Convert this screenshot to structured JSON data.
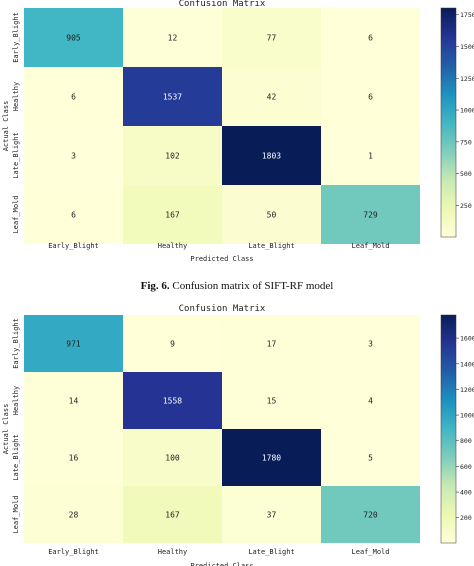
{
  "figures": [
    {
      "caption_bold": "Fig. 6.",
      "caption_text": "Confusion matrix of SIFT-RF model"
    },
    {
      "caption_bold": "",
      "caption_text": ""
    }
  ],
  "colors": {
    "colormap": [
      "#ffffd9",
      "#edf8b1",
      "#c7e9b4",
      "#7fcdbb",
      "#41b6c4",
      "#1d91c0",
      "#225ea8",
      "#253494",
      "#081d58"
    ]
  },
  "chart_data": [
    {
      "type": "heatmap",
      "title": "Confusion Matrix",
      "xlabel": "Predicted Class",
      "ylabel": "Actual Class",
      "x_categories": [
        "Early_Blight",
        "Healthy",
        "Late_Blight",
        "Leaf_Mold"
      ],
      "y_categories": [
        "Early_Blight",
        "Healthy",
        "Late_Blight",
        "Leaf_Mold"
      ],
      "values": [
        [
          905,
          12,
          77,
          6
        ],
        [
          6,
          1537,
          42,
          6
        ],
        [
          3,
          102,
          1803,
          1
        ],
        [
          6,
          167,
          50,
          729
        ]
      ],
      "vmin": 1,
      "vmax": 1803,
      "colorbar_ticks": [
        250,
        500,
        750,
        1000,
        1250,
        1500,
        1750
      ],
      "colorbar_tick_labels": [
        "250",
        "500",
        "750",
        "1000",
        "1250",
        "1500",
        "1750"
      ]
    },
    {
      "type": "heatmap",
      "title": "Confusion Matrix",
      "xlabel": "Predicted Class",
      "ylabel": "Actual Class",
      "x_categories": [
        "Early_Blight",
        "Healthy",
        "Late_Blight",
        "Leaf_Mold"
      ],
      "y_categories": [
        "Early_Blight",
        "Healthy",
        "Late_Blight",
        "Leaf_Mold"
      ],
      "values": [
        [
          971,
          9,
          17,
          3
        ],
        [
          14,
          1558,
          15,
          4
        ],
        [
          16,
          100,
          1780,
          5
        ],
        [
          28,
          167,
          37,
          720
        ]
      ],
      "vmin": 3,
      "vmax": 1780,
      "colorbar_ticks": [
        200,
        400,
        600,
        800,
        1000,
        1200,
        1400,
        1600
      ],
      "colorbar_tick_labels": [
        "200",
        "400",
        "600",
        "800",
        "1000",
        "1200",
        "1400",
        "1600"
      ]
    }
  ]
}
